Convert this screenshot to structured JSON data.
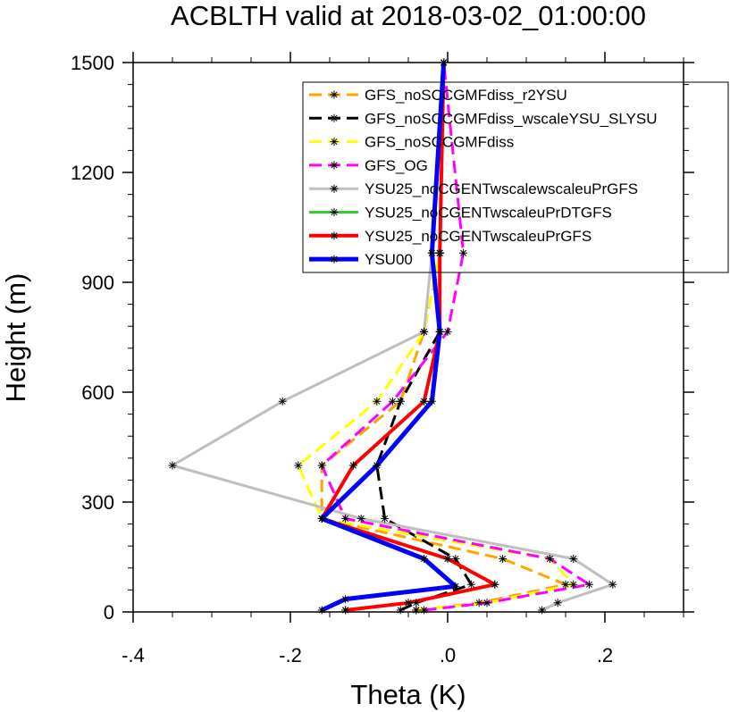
{
  "chart_data": {
    "type": "line",
    "title": "ACBLTH valid at 2018-03-02_01:00:00",
    "xlabel": "Theta (K)",
    "ylabel": "Height (m)",
    "xlim": [
      -0.4,
      0.3
    ],
    "ylim": [
      0,
      1500
    ],
    "xticks": [
      -0.4,
      -0.2,
      0.0,
      0.2
    ],
    "xtick_labels": [
      "-.4",
      "-.2",
      ".0",
      ".2"
    ],
    "yticks": [
      0,
      300,
      600,
      900,
      1200,
      1500
    ],
    "ytick_labels": [
      "0",
      "300",
      "600",
      "900",
      "1200",
      "1500"
    ],
    "grid": false,
    "legend_position": "top-right",
    "series": [
      {
        "name": "GFS_noSCCGMFdiss_r2YSU",
        "color": "#FFA500",
        "dash": "dashed",
        "width": 3,
        "points": [
          [
            -0.04,
            5
          ],
          [
            0.04,
            25
          ],
          [
            0.15,
            75
          ],
          [
            0.07,
            145
          ],
          [
            -0.16,
            255
          ],
          [
            -0.16,
            400
          ],
          [
            -0.06,
            575
          ],
          [
            -0.03,
            765
          ],
          [
            -0.01,
            980
          ],
          [
            -0.005,
            1500
          ]
        ]
      },
      {
        "name": "GFS_noSCCGMFdiss_wscaleYSU_SLYSU",
        "color": "#000000",
        "dash": "dashed",
        "width": 3,
        "points": [
          [
            -0.06,
            5
          ],
          [
            -0.04,
            25
          ],
          [
            0.03,
            75
          ],
          [
            0.01,
            145
          ],
          [
            -0.08,
            255
          ],
          [
            -0.09,
            400
          ],
          [
            -0.06,
            575
          ],
          [
            -0.01,
            765
          ],
          [
            -0.01,
            980
          ],
          [
            -0.005,
            1500
          ]
        ]
      },
      {
        "name": "GFS_noSCCGMFdiss",
        "color": "#FFFF00",
        "dash": "dashed",
        "width": 3,
        "points": [
          [
            -0.04,
            5
          ],
          [
            0.05,
            25
          ],
          [
            0.16,
            75
          ],
          [
            0.13,
            145
          ],
          [
            -0.16,
            255
          ],
          [
            -0.19,
            400
          ],
          [
            -0.09,
            575
          ],
          [
            -0.03,
            765
          ],
          [
            -0.01,
            980
          ],
          [
            -0.005,
            1500
          ]
        ]
      },
      {
        "name": "GFS_OG",
        "color": "#FF00FF",
        "dash": "dashed",
        "width": 3,
        "points": [
          [
            -0.03,
            5
          ],
          [
            0.05,
            25
          ],
          [
            0.18,
            75
          ],
          [
            0.13,
            145
          ],
          [
            -0.13,
            255
          ],
          [
            -0.16,
            400
          ],
          [
            -0.07,
            575
          ],
          [
            0.0,
            765
          ],
          [
            0.02,
            980
          ],
          [
            -0.005,
            1500
          ]
        ]
      },
      {
        "name": "YSU25_noCGENTwscalewscaleuPrGFS",
        "color": "#BEBEBE",
        "dash": "solid",
        "width": 3,
        "points": [
          [
            0.12,
            5
          ],
          [
            0.14,
            25
          ],
          [
            0.21,
            75
          ],
          [
            0.16,
            145
          ],
          [
            -0.11,
            255
          ],
          [
            -0.35,
            400
          ],
          [
            -0.21,
            575
          ],
          [
            -0.03,
            765
          ],
          [
            -0.02,
            980
          ],
          [
            -0.005,
            1500
          ]
        ]
      },
      {
        "name": "YSU25_noCGENTwscaleuPrDTGFS",
        "color": "#32CD32",
        "dash": "solid",
        "width": 3,
        "points": [
          [
            -0.13,
            5
          ],
          [
            -0.05,
            25
          ],
          [
            0.06,
            75
          ],
          [
            0.0,
            145
          ],
          [
            -0.16,
            255
          ],
          [
            -0.12,
            400
          ],
          [
            -0.03,
            575
          ],
          [
            -0.01,
            765
          ],
          [
            -0.01,
            980
          ],
          [
            -0.005,
            1500
          ]
        ]
      },
      {
        "name": "YSU25_noCGENTwscaleuPrGFS",
        "color": "#FF0000",
        "dash": "solid",
        "width": 4,
        "points": [
          [
            -0.13,
            5
          ],
          [
            -0.05,
            25
          ],
          [
            0.06,
            75
          ],
          [
            0.0,
            145
          ],
          [
            -0.16,
            255
          ],
          [
            -0.12,
            400
          ],
          [
            -0.03,
            575
          ],
          [
            -0.01,
            765
          ],
          [
            -0.01,
            980
          ],
          [
            -0.005,
            1500
          ]
        ]
      },
      {
        "name": "YSU00",
        "color": "#0000FF",
        "dash": "solid",
        "width": 5,
        "points": [
          [
            -0.16,
            5
          ],
          [
            -0.13,
            35
          ],
          [
            0.01,
            70
          ],
          [
            -0.03,
            145
          ],
          [
            -0.16,
            255
          ],
          [
            -0.09,
            400
          ],
          [
            -0.02,
            575
          ],
          [
            -0.01,
            765
          ],
          [
            -0.02,
            980
          ],
          [
            -0.005,
            1500
          ]
        ]
      }
    ]
  }
}
